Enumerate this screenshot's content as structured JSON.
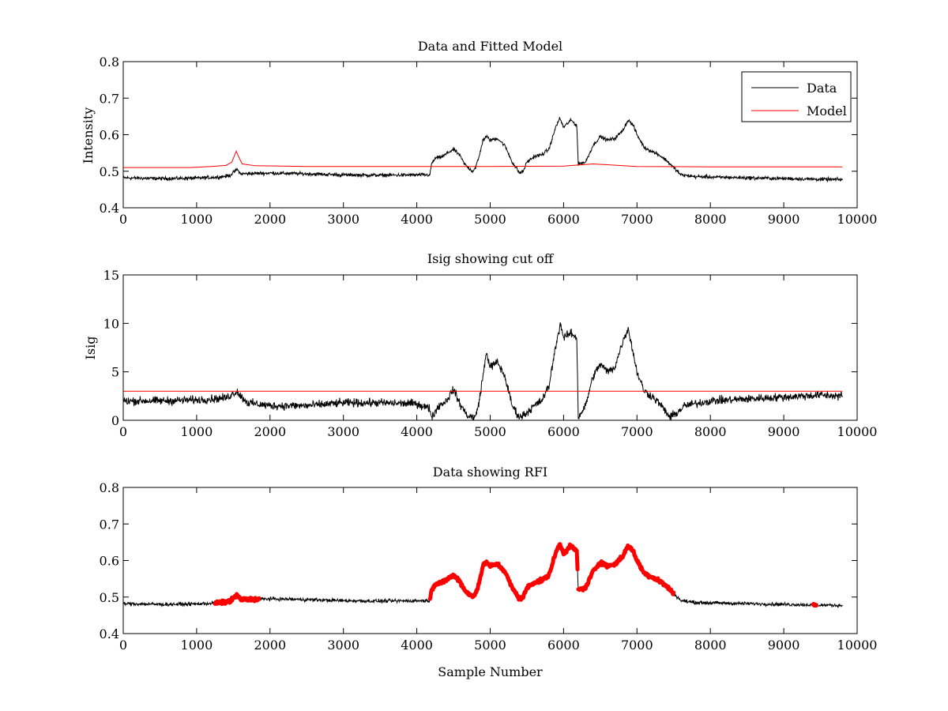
{
  "chart_data": [
    {
      "type": "line",
      "title": "Data and Fitted Model",
      "xlabel": "",
      "ylabel": "Intensity",
      "xlim": [
        0,
        10000
      ],
      "ylim": [
        0.4,
        0.8
      ],
      "xticks": [
        0,
        1000,
        2000,
        3000,
        4000,
        5000,
        6000,
        7000,
        8000,
        9000,
        10000
      ],
      "yticks": [
        0.4,
        0.5,
        0.6,
        0.7,
        0.8
      ],
      "xtick_labels": [
        "0",
        "1000",
        "2000",
        "3000",
        "4000",
        "5000",
        "6000",
        "7000",
        "8000",
        "9000",
        "10000"
      ],
      "ytick_labels": [
        "0.4",
        "0.5",
        "0.6",
        "0.7",
        "0.8"
      ],
      "grid": false,
      "legend": {
        "placement": "top-right",
        "entries": [
          "Data",
          "Model"
        ]
      },
      "series": [
        {
          "name": "Data",
          "color": "#000000",
          "noise": 0.004,
          "points": [
            [
              0,
              0.482
            ],
            [
              500,
              0.48
            ],
            [
              1000,
              0.481
            ],
            [
              1300,
              0.484
            ],
            [
              1450,
              0.488
            ],
            [
              1520,
              0.5
            ],
            [
              1550,
              0.505
            ],
            [
              1600,
              0.493
            ],
            [
              1800,
              0.494
            ],
            [
              2000,
              0.495
            ],
            [
              2500,
              0.493
            ],
            [
              3000,
              0.49
            ],
            [
              3500,
              0.489
            ],
            [
              4100,
              0.49
            ],
            [
              4180,
              0.49
            ],
            [
              4200,
              0.52
            ],
            [
              4250,
              0.535
            ],
            [
              4350,
              0.54
            ],
            [
              4420,
              0.55
            ],
            [
              4500,
              0.56
            ],
            [
              4580,
              0.545
            ],
            [
              4650,
              0.52
            ],
            [
              4700,
              0.51
            ],
            [
              4760,
              0.5
            ],
            [
              4800,
              0.51
            ],
            [
              4850,
              0.54
            ],
            [
              4900,
              0.585
            ],
            [
              4950,
              0.595
            ],
            [
              5000,
              0.585
            ],
            [
              5100,
              0.59
            ],
            [
              5200,
              0.57
            ],
            [
              5300,
              0.525
            ],
            [
              5400,
              0.495
            ],
            [
              5450,
              0.5
            ],
            [
              5500,
              0.525
            ],
            [
              5600,
              0.54
            ],
            [
              5700,
              0.545
            ],
            [
              5800,
              0.56
            ],
            [
              5900,
              0.625
            ],
            [
              5950,
              0.645
            ],
            [
              6000,
              0.62
            ],
            [
              6100,
              0.64
            ],
            [
              6180,
              0.625
            ],
            [
              6200,
              0.52
            ],
            [
              6300,
              0.525
            ],
            [
              6400,
              0.57
            ],
            [
              6500,
              0.595
            ],
            [
              6600,
              0.585
            ],
            [
              6700,
              0.59
            ],
            [
              6800,
              0.61
            ],
            [
              6880,
              0.64
            ],
            [
              6950,
              0.625
            ],
            [
              7000,
              0.6
            ],
            [
              7100,
              0.565
            ],
            [
              7200,
              0.555
            ],
            [
              7300,
              0.545
            ],
            [
              7400,
              0.53
            ],
            [
              7500,
              0.51
            ],
            [
              7600,
              0.49
            ],
            [
              7800,
              0.485
            ],
            [
              8000,
              0.484
            ],
            [
              8500,
              0.482
            ],
            [
              9000,
              0.48
            ],
            [
              9500,
              0.478
            ],
            [
              9800,
              0.477
            ]
          ]
        },
        {
          "name": "Model",
          "color": "#ff0000",
          "noise": 0,
          "points": [
            [
              0,
              0.51
            ],
            [
              900,
              0.51
            ],
            [
              1200,
              0.513
            ],
            [
              1400,
              0.516
            ],
            [
              1480,
              0.525
            ],
            [
              1540,
              0.555
            ],
            [
              1560,
              0.545
            ],
            [
              1620,
              0.52
            ],
            [
              1800,
              0.515
            ],
            [
              2500,
              0.513
            ],
            [
              4000,
              0.513
            ],
            [
              5000,
              0.513
            ],
            [
              6000,
              0.514
            ],
            [
              6400,
              0.52
            ],
            [
              7000,
              0.513
            ],
            [
              8000,
              0.512
            ],
            [
              9800,
              0.512
            ]
          ]
        }
      ]
    },
    {
      "type": "line",
      "title": "Isig showing cut off",
      "xlabel": "",
      "ylabel": "Isig",
      "xlim": [
        0,
        10000
      ],
      "ylim": [
        0,
        15
      ],
      "xticks": [
        0,
        1000,
        2000,
        3000,
        4000,
        5000,
        6000,
        7000,
        8000,
        9000,
        10000
      ],
      "yticks": [
        0,
        5,
        10,
        15
      ],
      "xtick_labels": [
        "0",
        "1000",
        "2000",
        "3000",
        "4000",
        "5000",
        "6000",
        "7000",
        "8000",
        "9000",
        "10000"
      ],
      "ytick_labels": [
        "0",
        "5",
        "10",
        "15"
      ],
      "grid": false,
      "series": [
        {
          "color": "#000000",
          "noise": 0.35,
          "points": [
            [
              0,
              2.0
            ],
            [
              500,
              2.0
            ],
            [
              1000,
              2.1
            ],
            [
              1400,
              2.3
            ],
            [
              1550,
              3.0
            ],
            [
              1600,
              2.5
            ],
            [
              1700,
              1.8
            ],
            [
              2000,
              1.5
            ],
            [
              2500,
              1.5
            ],
            [
              3000,
              1.8
            ],
            [
              3500,
              1.8
            ],
            [
              4000,
              1.7
            ],
            [
              4180,
              1.2
            ],
            [
              4200,
              0.3
            ],
            [
              4300,
              1.5
            ],
            [
              4400,
              2.0
            ],
            [
              4500,
              3.2
            ],
            [
              4600,
              1.5
            ],
            [
              4700,
              0.4
            ],
            [
              4800,
              0.3
            ],
            [
              4850,
              2.0
            ],
            [
              4950,
              7.0
            ],
            [
              5000,
              5.5
            ],
            [
              5100,
              6.0
            ],
            [
              5200,
              4.5
            ],
            [
              5300,
              1.5
            ],
            [
              5400,
              0.3
            ],
            [
              5500,
              0.8
            ],
            [
              5600,
              1.5
            ],
            [
              5700,
              2.0
            ],
            [
              5800,
              3.5
            ],
            [
              5900,
              8.0
            ],
            [
              5960,
              10.0
            ],
            [
              6000,
              8.5
            ],
            [
              6100,
              9.0
            ],
            [
              6180,
              8.5
            ],
            [
              6200,
              0.3
            ],
            [
              6300,
              1.5
            ],
            [
              6400,
              4.5
            ],
            [
              6500,
              5.8
            ],
            [
              6600,
              5.0
            ],
            [
              6700,
              5.5
            ],
            [
              6800,
              8.0
            ],
            [
              6880,
              9.5
            ],
            [
              7000,
              5.0
            ],
            [
              7100,
              3.0
            ],
            [
              7200,
              2.5
            ],
            [
              7300,
              1.8
            ],
            [
              7450,
              0.3
            ],
            [
              7550,
              0.8
            ],
            [
              7650,
              1.5
            ],
            [
              8000,
              2.0
            ],
            [
              8500,
              2.2
            ],
            [
              9000,
              2.4
            ],
            [
              9500,
              2.6
            ],
            [
              9800,
              2.5
            ]
          ]
        },
        {
          "color": "#ff0000",
          "noise": 0,
          "points": [
            [
              0,
              3.0
            ],
            [
              9800,
              3.0
            ]
          ]
        }
      ]
    },
    {
      "type": "line",
      "title": "Data showing RFI",
      "xlabel": "Sample Number",
      "ylabel": "",
      "xlim": [
        0,
        10000
      ],
      "ylim": [
        0.4,
        0.8
      ],
      "xticks": [
        0,
        1000,
        2000,
        3000,
        4000,
        5000,
        6000,
        7000,
        8000,
        9000,
        10000
      ],
      "yticks": [
        0.4,
        0.5,
        0.6,
        0.7,
        0.8
      ],
      "xtick_labels": [
        "0",
        "1000",
        "2000",
        "3000",
        "4000",
        "5000",
        "6000",
        "7000",
        "8000",
        "9000",
        "10000"
      ],
      "ytick_labels": [
        "0.4",
        "0.5",
        "0.6",
        "0.7",
        "0.8"
      ],
      "grid": false,
      "rfi_color": "#ff0000",
      "rfi_ranges": [
        [
          1250,
          1850
        ],
        [
          4180,
          6190
        ],
        [
          6200,
          7500
        ],
        [
          9400,
          9440
        ]
      ],
      "series": [
        {
          "color": "#000000",
          "noise": 0.004,
          "points": [
            [
              0,
              0.482
            ],
            [
              500,
              0.48
            ],
            [
              1000,
              0.481
            ],
            [
              1300,
              0.484
            ],
            [
              1450,
              0.488
            ],
            [
              1520,
              0.5
            ],
            [
              1550,
              0.505
            ],
            [
              1600,
              0.493
            ],
            [
              1800,
              0.494
            ],
            [
              2000,
              0.495
            ],
            [
              2500,
              0.493
            ],
            [
              3000,
              0.49
            ],
            [
              3500,
              0.489
            ],
            [
              4100,
              0.49
            ],
            [
              4180,
              0.49
            ],
            [
              4200,
              0.52
            ],
            [
              4250,
              0.535
            ],
            [
              4350,
              0.54
            ],
            [
              4420,
              0.55
            ],
            [
              4500,
              0.56
            ],
            [
              4580,
              0.545
            ],
            [
              4650,
              0.52
            ],
            [
              4700,
              0.51
            ],
            [
              4760,
              0.5
            ],
            [
              4800,
              0.51
            ],
            [
              4850,
              0.54
            ],
            [
              4900,
              0.585
            ],
            [
              4950,
              0.595
            ],
            [
              5000,
              0.585
            ],
            [
              5100,
              0.59
            ],
            [
              5200,
              0.57
            ],
            [
              5300,
              0.525
            ],
            [
              5400,
              0.495
            ],
            [
              5450,
              0.5
            ],
            [
              5500,
              0.525
            ],
            [
              5600,
              0.54
            ],
            [
              5700,
              0.545
            ],
            [
              5800,
              0.56
            ],
            [
              5900,
              0.625
            ],
            [
              5950,
              0.645
            ],
            [
              6000,
              0.62
            ],
            [
              6100,
              0.64
            ],
            [
              6180,
              0.625
            ],
            [
              6200,
              0.52
            ],
            [
              6300,
              0.525
            ],
            [
              6400,
              0.57
            ],
            [
              6500,
              0.595
            ],
            [
              6600,
              0.585
            ],
            [
              6700,
              0.59
            ],
            [
              6800,
              0.61
            ],
            [
              6880,
              0.64
            ],
            [
              6950,
              0.625
            ],
            [
              7000,
              0.6
            ],
            [
              7100,
              0.565
            ],
            [
              7200,
              0.555
            ],
            [
              7300,
              0.545
            ],
            [
              7400,
              0.53
            ],
            [
              7500,
              0.51
            ],
            [
              7600,
              0.49
            ],
            [
              7800,
              0.485
            ],
            [
              8000,
              0.484
            ],
            [
              8500,
              0.482
            ],
            [
              9000,
              0.48
            ],
            [
              9500,
              0.478
            ],
            [
              9800,
              0.477
            ]
          ]
        }
      ]
    }
  ]
}
